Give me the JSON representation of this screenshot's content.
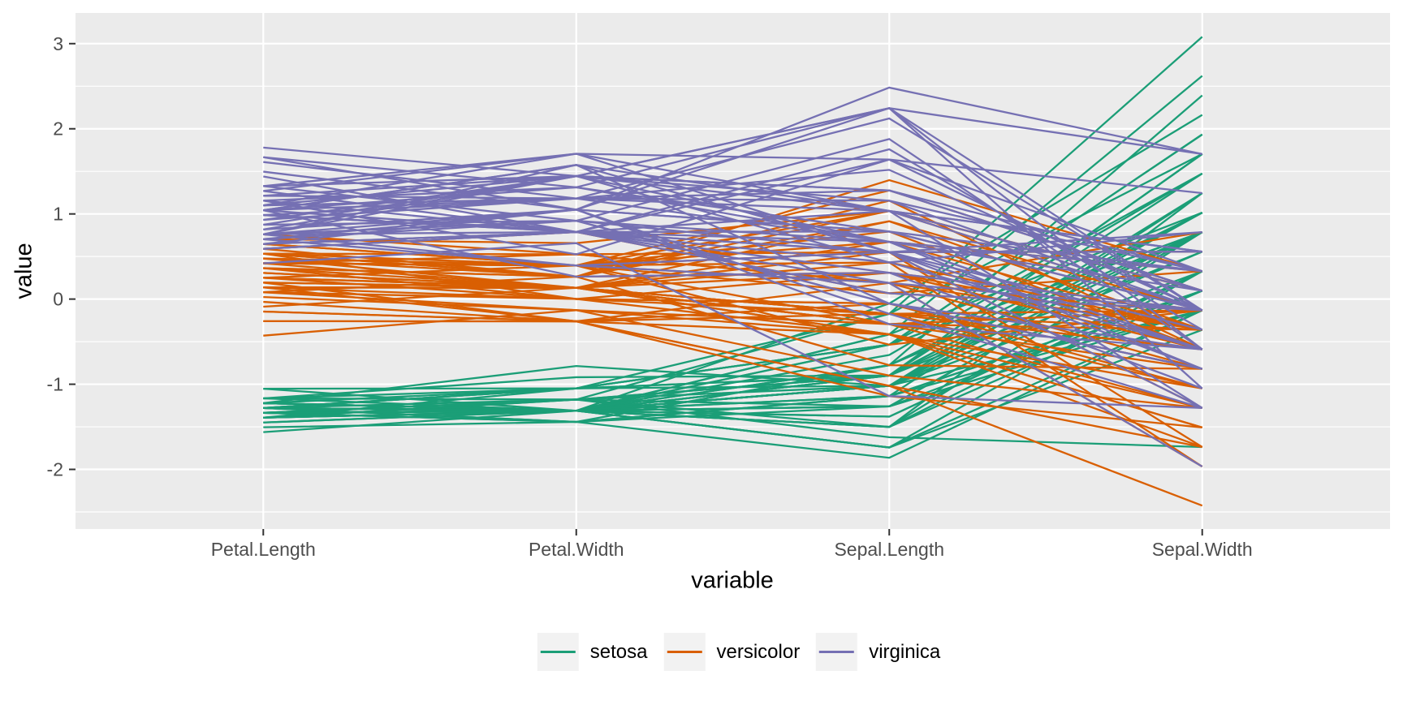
{
  "chart_data": {
    "type": "line",
    "variant": "parallel-coordinates",
    "title": "",
    "xlabel": "variable",
    "ylabel": "value",
    "categories": [
      "Petal.Length",
      "Petal.Width",
      "Sepal.Length",
      "Sepal.Width"
    ],
    "y_ticks": [
      -2,
      -1,
      0,
      1,
      2,
      3
    ],
    "y_minor_ticks": [
      -2.5,
      -1.5,
      -0.5,
      0.5,
      1.5,
      2.5
    ],
    "ylim": [
      -2.7,
      3.36
    ],
    "grid": "on",
    "values_are": "z-score standardized per variable: z = (raw - mean) / sd",
    "scaling": {
      "mean": [
        3.758,
        1.1993,
        5.8433,
        3.0573
      ],
      "sd": [
        1.7653,
        0.7622,
        0.8281,
        0.4359
      ]
    },
    "legend": {
      "position": "bottom",
      "entries": [
        "setosa",
        "versicolor",
        "virginica"
      ]
    },
    "style": {
      "panel_bg": "#EBEBEB",
      "grid_color": "#FFFFFF",
      "tick_color": "#333333",
      "tick_label_color": "#4D4D4D",
      "axis_title_color": "#000000",
      "legend_key_bg": "#F2F2F2",
      "line_width": 2.3
    },
    "series": [
      {
        "name": "setosa",
        "color": "#1B9E77",
        "rows": [
          [
            1.4,
            0.2,
            5.1,
            3.5
          ],
          [
            1.4,
            0.2,
            4.9,
            3.0
          ],
          [
            1.3,
            0.2,
            4.7,
            3.2
          ],
          [
            1.5,
            0.2,
            4.6,
            3.1
          ],
          [
            1.4,
            0.2,
            5.0,
            3.6
          ],
          [
            1.7,
            0.4,
            5.4,
            3.9
          ],
          [
            1.4,
            0.3,
            4.6,
            3.4
          ],
          [
            1.5,
            0.2,
            5.0,
            3.4
          ],
          [
            1.4,
            0.2,
            4.4,
            2.9
          ],
          [
            1.5,
            0.1,
            4.9,
            3.1
          ],
          [
            1.5,
            0.2,
            5.4,
            3.7
          ],
          [
            1.6,
            0.2,
            4.8,
            3.4
          ],
          [
            1.4,
            0.1,
            4.8,
            3.0
          ],
          [
            1.1,
            0.1,
            4.3,
            3.0
          ],
          [
            1.2,
            0.2,
            5.8,
            4.0
          ],
          [
            1.5,
            0.4,
            5.7,
            4.4
          ],
          [
            1.3,
            0.4,
            5.4,
            3.9
          ],
          [
            1.4,
            0.3,
            5.1,
            3.5
          ],
          [
            1.7,
            0.3,
            5.7,
            3.8
          ],
          [
            1.5,
            0.3,
            5.1,
            3.8
          ],
          [
            1.7,
            0.2,
            5.4,
            3.4
          ],
          [
            1.5,
            0.4,
            5.1,
            3.7
          ],
          [
            1.0,
            0.2,
            4.6,
            3.6
          ],
          [
            1.7,
            0.5,
            5.1,
            3.3
          ],
          [
            1.9,
            0.2,
            4.8,
            3.4
          ],
          [
            1.6,
            0.2,
            5.0,
            3.0
          ],
          [
            1.6,
            0.4,
            5.0,
            3.4
          ],
          [
            1.5,
            0.2,
            5.2,
            3.5
          ],
          [
            1.4,
            0.2,
            5.2,
            3.4
          ],
          [
            1.6,
            0.2,
            4.7,
            3.2
          ],
          [
            1.6,
            0.2,
            4.8,
            3.1
          ],
          [
            1.5,
            0.4,
            5.4,
            3.4
          ],
          [
            1.5,
            0.1,
            5.2,
            4.1
          ],
          [
            1.4,
            0.2,
            5.5,
            4.2
          ],
          [
            1.5,
            0.2,
            4.9,
            3.1
          ],
          [
            1.2,
            0.2,
            5.0,
            3.2
          ],
          [
            1.3,
            0.2,
            5.5,
            3.5
          ],
          [
            1.4,
            0.1,
            4.9,
            3.6
          ],
          [
            1.3,
            0.2,
            4.4,
            3.0
          ],
          [
            1.5,
            0.2,
            5.1,
            3.4
          ],
          [
            1.3,
            0.3,
            5.0,
            3.5
          ],
          [
            1.3,
            0.3,
            4.5,
            2.3
          ],
          [
            1.3,
            0.2,
            4.4,
            3.2
          ],
          [
            1.6,
            0.6,
            5.0,
            3.5
          ],
          [
            1.9,
            0.4,
            5.1,
            3.8
          ],
          [
            1.4,
            0.3,
            4.8,
            3.0
          ],
          [
            1.6,
            0.2,
            5.1,
            3.8
          ],
          [
            1.4,
            0.2,
            4.6,
            3.2
          ],
          [
            1.5,
            0.2,
            5.3,
            3.7
          ],
          [
            1.4,
            0.2,
            5.0,
            3.3
          ]
        ]
      },
      {
        "name": "versicolor",
        "color": "#D95F02",
        "rows": [
          [
            4.7,
            1.4,
            7.0,
            3.2
          ],
          [
            4.5,
            1.5,
            6.4,
            3.2
          ],
          [
            4.9,
            1.5,
            6.9,
            3.1
          ],
          [
            4.0,
            1.3,
            5.5,
            2.3
          ],
          [
            4.6,
            1.5,
            6.5,
            2.8
          ],
          [
            4.5,
            1.3,
            5.7,
            2.8
          ],
          [
            4.7,
            1.6,
            6.3,
            3.3
          ],
          [
            3.3,
            1.0,
            4.9,
            2.4
          ],
          [
            4.6,
            1.3,
            6.6,
            2.9
          ],
          [
            3.9,
            1.4,
            5.2,
            2.7
          ],
          [
            3.5,
            1.0,
            5.0,
            2.0
          ],
          [
            4.2,
            1.5,
            5.9,
            3.0
          ],
          [
            4.0,
            1.0,
            6.0,
            2.2
          ],
          [
            4.7,
            1.4,
            6.1,
            2.9
          ],
          [
            3.6,
            1.3,
            5.6,
            2.9
          ],
          [
            4.4,
            1.4,
            6.7,
            3.1
          ],
          [
            4.5,
            1.5,
            5.6,
            3.0
          ],
          [
            4.1,
            1.0,
            5.8,
            2.7
          ],
          [
            4.5,
            1.5,
            6.2,
            2.2
          ],
          [
            3.9,
            1.1,
            5.6,
            2.5
          ],
          [
            4.8,
            1.8,
            5.9,
            3.2
          ],
          [
            4.0,
            1.3,
            6.1,
            2.8
          ],
          [
            4.9,
            1.5,
            6.3,
            2.5
          ],
          [
            4.7,
            1.2,
            6.1,
            2.8
          ],
          [
            4.3,
            1.3,
            6.4,
            2.9
          ],
          [
            4.4,
            1.4,
            6.6,
            3.0
          ],
          [
            4.8,
            1.4,
            6.8,
            2.8
          ],
          [
            5.0,
            1.7,
            6.7,
            3.0
          ],
          [
            4.5,
            1.5,
            6.0,
            2.9
          ],
          [
            3.5,
            1.0,
            5.7,
            2.6
          ],
          [
            3.8,
            1.1,
            5.5,
            2.4
          ],
          [
            3.7,
            1.0,
            5.5,
            2.4
          ],
          [
            3.9,
            1.2,
            5.8,
            2.7
          ],
          [
            5.1,
            1.6,
            6.0,
            2.7
          ],
          [
            4.5,
            1.5,
            5.4,
            3.0
          ],
          [
            4.5,
            1.6,
            6.0,
            3.4
          ],
          [
            4.7,
            1.5,
            6.7,
            3.1
          ],
          [
            4.4,
            1.3,
            6.3,
            2.3
          ],
          [
            4.1,
            1.3,
            5.6,
            3.0
          ],
          [
            4.0,
            1.3,
            5.5,
            2.5
          ],
          [
            4.4,
            1.2,
            5.5,
            2.6
          ],
          [
            4.6,
            1.4,
            6.1,
            3.0
          ],
          [
            4.0,
            1.2,
            5.8,
            2.6
          ],
          [
            3.3,
            1.0,
            5.0,
            2.3
          ],
          [
            4.2,
            1.3,
            5.6,
            2.7
          ],
          [
            4.2,
            1.2,
            5.7,
            3.0
          ],
          [
            4.2,
            1.3,
            5.7,
            2.9
          ],
          [
            4.3,
            1.3,
            6.2,
            2.9
          ],
          [
            3.0,
            1.1,
            5.1,
            2.5
          ],
          [
            4.1,
            1.3,
            5.7,
            2.8
          ]
        ]
      },
      {
        "name": "virginica",
        "color": "#7570B3",
        "rows": [
          [
            6.0,
            2.5,
            6.3,
            3.3
          ],
          [
            5.1,
            1.9,
            5.8,
            2.7
          ],
          [
            5.9,
            2.1,
            7.1,
            3.0
          ],
          [
            5.6,
            1.8,
            6.3,
            2.9
          ],
          [
            5.8,
            2.2,
            6.5,
            3.0
          ],
          [
            6.6,
            2.1,
            7.6,
            3.0
          ],
          [
            4.5,
            1.7,
            4.9,
            2.5
          ],
          [
            6.3,
            1.8,
            7.3,
            2.9
          ],
          [
            5.8,
            1.8,
            6.7,
            2.5
          ],
          [
            6.1,
            2.5,
            7.2,
            3.6
          ],
          [
            5.1,
            2.0,
            6.5,
            3.2
          ],
          [
            5.3,
            1.9,
            6.4,
            2.7
          ],
          [
            5.5,
            2.1,
            6.8,
            3.0
          ],
          [
            5.0,
            2.0,
            5.7,
            2.5
          ],
          [
            5.1,
            2.4,
            5.8,
            2.8
          ],
          [
            5.3,
            2.3,
            6.4,
            3.2
          ],
          [
            5.5,
            1.8,
            6.5,
            3.0
          ],
          [
            6.7,
            2.2,
            7.7,
            3.8
          ],
          [
            6.9,
            2.3,
            7.7,
            2.6
          ],
          [
            5.0,
            1.5,
            6.0,
            2.2
          ],
          [
            5.7,
            2.3,
            6.9,
            3.2
          ],
          [
            4.9,
            2.0,
            5.6,
            2.8
          ],
          [
            6.7,
            2.0,
            7.7,
            2.8
          ],
          [
            4.9,
            1.8,
            6.3,
            2.7
          ],
          [
            5.7,
            2.1,
            6.7,
            3.3
          ],
          [
            6.0,
            1.8,
            7.2,
            3.2
          ],
          [
            4.8,
            1.8,
            6.2,
            2.8
          ],
          [
            4.9,
            1.8,
            6.1,
            3.0
          ],
          [
            5.6,
            2.1,
            6.4,
            2.8
          ],
          [
            5.8,
            1.6,
            7.2,
            3.0
          ],
          [
            6.1,
            1.9,
            7.4,
            2.8
          ],
          [
            6.4,
            2.0,
            7.9,
            3.8
          ],
          [
            5.6,
            2.2,
            6.4,
            2.8
          ],
          [
            5.1,
            1.5,
            6.3,
            2.8
          ],
          [
            5.6,
            1.4,
            6.1,
            2.6
          ],
          [
            6.1,
            2.3,
            7.7,
            3.0
          ],
          [
            5.6,
            2.4,
            6.3,
            3.4
          ],
          [
            5.5,
            1.8,
            6.4,
            3.1
          ],
          [
            4.8,
            1.8,
            6.0,
            3.0
          ],
          [
            5.4,
            2.1,
            6.9,
            3.1
          ],
          [
            5.6,
            2.4,
            6.7,
            3.1
          ],
          [
            5.1,
            2.3,
            6.9,
            3.1
          ],
          [
            5.1,
            1.9,
            5.8,
            2.7
          ],
          [
            5.9,
            2.3,
            6.8,
            3.2
          ],
          [
            5.7,
            2.5,
            6.7,
            3.3
          ],
          [
            5.2,
            2.3,
            6.7,
            3.0
          ],
          [
            5.0,
            1.9,
            6.3,
            2.5
          ],
          [
            5.2,
            2.0,
            6.5,
            3.0
          ],
          [
            5.4,
            2.3,
            6.2,
            3.4
          ],
          [
            5.1,
            1.8,
            5.9,
            3.0
          ]
        ]
      }
    ]
  }
}
